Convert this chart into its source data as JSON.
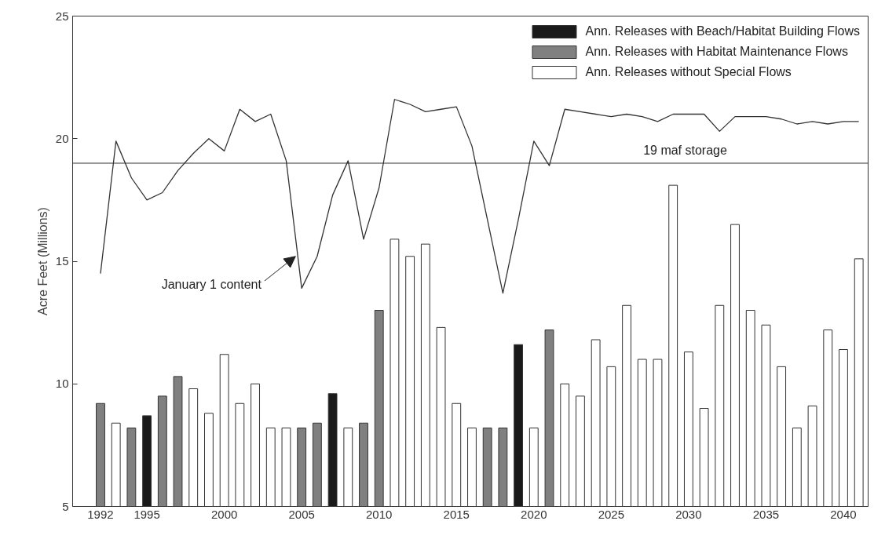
{
  "chart_data": {
    "type": "bar",
    "ylabel": "Acre Feet (Millions)",
    "xlim": [
      1990.2,
      2041.6
    ],
    "ylim": [
      5,
      25
    ],
    "xticks": [
      1992,
      1995,
      2000,
      2005,
      2010,
      2015,
      2020,
      2025,
      2030,
      2035,
      2040
    ],
    "yticks": [
      5,
      10,
      15,
      20,
      25
    ],
    "grid": false,
    "legend": "top right",
    "x": [
      1992,
      1993,
      1994,
      1995,
      1996,
      1997,
      1998,
      1999,
      2000,
      2001,
      2002,
      2003,
      2004,
      2005,
      2006,
      2007,
      2008,
      2009,
      2010,
      2011,
      2012,
      2013,
      2014,
      2015,
      2016,
      2017,
      2018,
      2019,
      2020,
      2021,
      2022,
      2023,
      2024,
      2025,
      2026,
      2027,
      2028,
      2029,
      2030,
      2031,
      2032,
      2033,
      2034,
      2035,
      2036,
      2037,
      2038,
      2039,
      2040,
      2041
    ],
    "series": [
      {
        "name": "Ann. Releases with Beach/Habitat Building Flows",
        "color": "#1a1a1a",
        "values": [
          null,
          null,
          null,
          8.7,
          null,
          null,
          null,
          null,
          null,
          null,
          null,
          null,
          null,
          null,
          null,
          9.6,
          null,
          null,
          null,
          null,
          null,
          null,
          null,
          null,
          null,
          null,
          null,
          11.6,
          null,
          null,
          null,
          null,
          null,
          null,
          null,
          null,
          null,
          null,
          null,
          null,
          null,
          null,
          null,
          null,
          null,
          null,
          null,
          null,
          null,
          null
        ]
      },
      {
        "name": "Ann. Releases with Habitat Maintenance Flows",
        "color": "#808080",
        "values": [
          9.2,
          null,
          8.2,
          null,
          9.5,
          10.3,
          null,
          null,
          null,
          null,
          null,
          null,
          null,
          8.2,
          8.4,
          null,
          null,
          8.4,
          13.0,
          null,
          null,
          null,
          null,
          null,
          null,
          8.2,
          8.2,
          null,
          null,
          12.2,
          null,
          null,
          null,
          null,
          null,
          null,
          null,
          null,
          null,
          null,
          null,
          null,
          null,
          null,
          null,
          null,
          null,
          null,
          null,
          null
        ]
      },
      {
        "name": "Ann. Releases without Special Flows",
        "color": "#ffffff",
        "values": [
          null,
          8.4,
          null,
          null,
          null,
          null,
          9.8,
          8.8,
          11.2,
          9.2,
          10.0,
          8.2,
          8.2,
          null,
          null,
          null,
          8.2,
          null,
          null,
          15.9,
          15.2,
          15.7,
          12.3,
          9.2,
          8.2,
          null,
          null,
          null,
          8.2,
          null,
          10.0,
          9.5,
          11.8,
          10.7,
          13.2,
          11.0,
          11.0,
          18.1,
          11.3,
          9.0,
          13.2,
          16.5,
          13.0,
          12.4,
          10.7,
          8.2,
          9.1,
          12.2,
          11.4,
          15.1
        ]
      },
      {
        "type": "line",
        "color": "#333333",
        "values": [
          14.5,
          19.9,
          18.4,
          17.5,
          17.8,
          18.7,
          19.4,
          20.0,
          19.5,
          21.2,
          20.7,
          21.0,
          19.1,
          13.9,
          15.2,
          17.7,
          19.1,
          15.9,
          18.0,
          21.6,
          21.4,
          21.1,
          21.2,
          21.3,
          19.7,
          16.7,
          13.7,
          16.7,
          19.9,
          18.9,
          21.2,
          21.1,
          21.0,
          20.9,
          21.0,
          20.9,
          20.7,
          21.0,
          21.0,
          21.0,
          20.3,
          20.9,
          20.9,
          20.9,
          20.8,
          20.6,
          20.7,
          20.6,
          20.7,
          20.7
        ]
      }
    ],
    "ref_lines": [
      {
        "axis": "y",
        "value": 19,
        "label": "19 maf storage",
        "color": "#333333"
      }
    ],
    "annotations": [
      {
        "text": "January 1 content",
        "x": 2004.6,
        "y": 15.2
      }
    ]
  }
}
